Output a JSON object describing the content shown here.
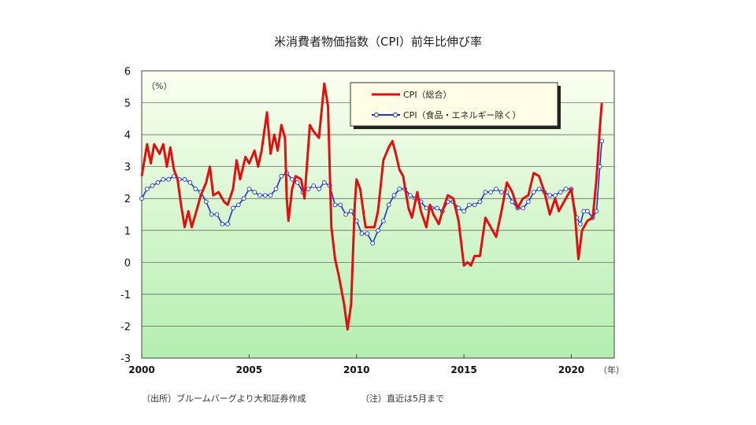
{
  "chart_data": {
    "type": "line",
    "title": "米消費者物価指数（CPI）前年比伸び率",
    "ylabel_unit": "（%）",
    "xlabel_unit": "（年）",
    "x_range": [
      2000,
      2022
    ],
    "ylim": [
      -3,
      6
    ],
    "y_ticks": [
      "6",
      "5",
      "4",
      "3",
      "2",
      "1",
      "0",
      "-1",
      "-2",
      "-3"
    ],
    "x_ticks": [
      "2000",
      "2005",
      "2010",
      "2015",
      "2020"
    ],
    "grid": true,
    "legend_position": "top-right",
    "colors": {
      "cpi": "#e01010",
      "core": "#2233cc",
      "plot_top": "#fbfff0",
      "plot_bottom": "#b4eeb0"
    },
    "series": [
      {
        "name": "CPI（総合）",
        "key": "cpi",
        "marker": "none",
        "points": [
          [
            2000.0,
            2.7
          ],
          [
            2000.25,
            3.7
          ],
          [
            2000.42,
            3.1
          ],
          [
            2000.58,
            3.7
          ],
          [
            2000.83,
            3.4
          ],
          [
            2001.0,
            3.7
          ],
          [
            2001.17,
            3.0
          ],
          [
            2001.33,
            3.6
          ],
          [
            2001.5,
            2.9
          ],
          [
            2001.67,
            2.6
          ],
          [
            2001.83,
            1.8
          ],
          [
            2002.0,
            1.1
          ],
          [
            2002.17,
            1.6
          ],
          [
            2002.33,
            1.1
          ],
          [
            2002.5,
            1.5
          ],
          [
            2002.75,
            2.1
          ],
          [
            2003.0,
            2.5
          ],
          [
            2003.17,
            3.0
          ],
          [
            2003.33,
            2.1
          ],
          [
            2003.58,
            2.2
          ],
          [
            2003.83,
            1.9
          ],
          [
            2004.0,
            1.8
          ],
          [
            2004.25,
            2.3
          ],
          [
            2004.42,
            3.2
          ],
          [
            2004.58,
            2.6
          ],
          [
            2004.83,
            3.3
          ],
          [
            2005.0,
            3.1
          ],
          [
            2005.25,
            3.5
          ],
          [
            2005.42,
            3.0
          ],
          [
            2005.58,
            3.5
          ],
          [
            2005.83,
            4.7
          ],
          [
            2006.0,
            3.4
          ],
          [
            2006.17,
            4.0
          ],
          [
            2006.33,
            3.5
          ],
          [
            2006.5,
            4.3
          ],
          [
            2006.67,
            3.9
          ],
          [
            2006.75,
            2.0
          ],
          [
            2006.83,
            1.3
          ],
          [
            2007.0,
            2.3
          ],
          [
            2007.17,
            2.7
          ],
          [
            2007.42,
            2.6
          ],
          [
            2007.58,
            2.0
          ],
          [
            2007.83,
            4.3
          ],
          [
            2008.0,
            4.1
          ],
          [
            2008.25,
            3.9
          ],
          [
            2008.5,
            5.6
          ],
          [
            2008.67,
            4.9
          ],
          [
            2008.83,
            1.1
          ],
          [
            2009.0,
            0.1
          ],
          [
            2009.17,
            -0.4
          ],
          [
            2009.42,
            -1.3
          ],
          [
            2009.58,
            -2.1
          ],
          [
            2009.75,
            -1.3
          ],
          [
            2009.92,
            1.8
          ],
          [
            2010.0,
            2.6
          ],
          [
            2010.17,
            2.3
          ],
          [
            2010.42,
            1.1
          ],
          [
            2010.67,
            1.1
          ],
          [
            2010.83,
            1.1
          ],
          [
            2011.0,
            1.6
          ],
          [
            2011.25,
            3.2
          ],
          [
            2011.5,
            3.6
          ],
          [
            2011.67,
            3.8
          ],
          [
            2011.83,
            3.4
          ],
          [
            2012.0,
            2.9
          ],
          [
            2012.17,
            2.7
          ],
          [
            2012.42,
            1.7
          ],
          [
            2012.58,
            1.4
          ],
          [
            2012.83,
            2.2
          ],
          [
            2013.0,
            1.6
          ],
          [
            2013.25,
            1.1
          ],
          [
            2013.42,
            1.8
          ],
          [
            2013.58,
            1.5
          ],
          [
            2013.83,
            1.2
          ],
          [
            2014.0,
            1.6
          ],
          [
            2014.25,
            2.1
          ],
          [
            2014.5,
            2.0
          ],
          [
            2014.75,
            1.3
          ],
          [
            2015.0,
            -0.1
          ],
          [
            2015.17,
            0.0
          ],
          [
            2015.33,
            -0.1
          ],
          [
            2015.5,
            0.2
          ],
          [
            2015.75,
            0.2
          ],
          [
            2016.0,
            1.4
          ],
          [
            2016.25,
            1.1
          ],
          [
            2016.5,
            0.8
          ],
          [
            2016.75,
            1.6
          ],
          [
            2017.0,
            2.5
          ],
          [
            2017.25,
            2.2
          ],
          [
            2017.5,
            1.7
          ],
          [
            2017.75,
            2.0
          ],
          [
            2018.0,
            2.1
          ],
          [
            2018.25,
            2.8
          ],
          [
            2018.5,
            2.7
          ],
          [
            2018.75,
            2.2
          ],
          [
            2019.0,
            1.5
          ],
          [
            2019.25,
            2.0
          ],
          [
            2019.42,
            1.6
          ],
          [
            2019.58,
            1.8
          ],
          [
            2019.83,
            2.1
          ],
          [
            2020.0,
            2.3
          ],
          [
            2020.17,
            1.5
          ],
          [
            2020.33,
            0.1
          ],
          [
            2020.5,
            1.0
          ],
          [
            2020.75,
            1.3
          ],
          [
            2021.0,
            1.4
          ],
          [
            2021.17,
            2.6
          ],
          [
            2021.33,
            4.2
          ],
          [
            2021.42,
            5.0
          ]
        ]
      },
      {
        "name": "CPI（食品・エネルギー除く）",
        "key": "core",
        "marker": "circle",
        "points": [
          [
            2000.0,
            2.0
          ],
          [
            2000.25,
            2.3
          ],
          [
            2000.5,
            2.4
          ],
          [
            2000.75,
            2.5
          ],
          [
            2001.0,
            2.6
          ],
          [
            2001.25,
            2.6
          ],
          [
            2001.5,
            2.7
          ],
          [
            2001.75,
            2.6
          ],
          [
            2002.0,
            2.6
          ],
          [
            2002.25,
            2.5
          ],
          [
            2002.5,
            2.3
          ],
          [
            2002.75,
            2.2
          ],
          [
            2003.0,
            1.9
          ],
          [
            2003.25,
            1.5
          ],
          [
            2003.5,
            1.5
          ],
          [
            2003.75,
            1.2
          ],
          [
            2004.0,
            1.2
          ],
          [
            2004.25,
            1.7
          ],
          [
            2004.5,
            1.8
          ],
          [
            2004.75,
            2.0
          ],
          [
            2005.0,
            2.3
          ],
          [
            2005.25,
            2.2
          ],
          [
            2005.5,
            2.1
          ],
          [
            2005.75,
            2.1
          ],
          [
            2006.0,
            2.1
          ],
          [
            2006.25,
            2.3
          ],
          [
            2006.5,
            2.7
          ],
          [
            2006.75,
            2.8
          ],
          [
            2007.0,
            2.6
          ],
          [
            2007.25,
            2.5
          ],
          [
            2007.5,
            2.2
          ],
          [
            2007.75,
            2.3
          ],
          [
            2008.0,
            2.4
          ],
          [
            2008.25,
            2.3
          ],
          [
            2008.5,
            2.5
          ],
          [
            2008.75,
            2.4
          ],
          [
            2009.0,
            1.8
          ],
          [
            2009.25,
            1.8
          ],
          [
            2009.5,
            1.5
          ],
          [
            2009.75,
            1.6
          ],
          [
            2010.0,
            1.3
          ],
          [
            2010.25,
            0.9
          ],
          [
            2010.5,
            0.9
          ],
          [
            2010.75,
            0.6
          ],
          [
            2011.0,
            1.0
          ],
          [
            2011.25,
            1.3
          ],
          [
            2011.5,
            1.8
          ],
          [
            2011.75,
            2.1
          ],
          [
            2012.0,
            2.3
          ],
          [
            2012.25,
            2.3
          ],
          [
            2012.5,
            2.1
          ],
          [
            2012.75,
            2.0
          ],
          [
            2013.0,
            1.9
          ],
          [
            2013.25,
            1.7
          ],
          [
            2013.5,
            1.7
          ],
          [
            2013.75,
            1.7
          ],
          [
            2014.0,
            1.6
          ],
          [
            2014.25,
            1.9
          ],
          [
            2014.5,
            1.9
          ],
          [
            2014.75,
            1.7
          ],
          [
            2015.0,
            1.6
          ],
          [
            2015.25,
            1.8
          ],
          [
            2015.5,
            1.8
          ],
          [
            2015.75,
            1.9
          ],
          [
            2016.0,
            2.2
          ],
          [
            2016.25,
            2.2
          ],
          [
            2016.5,
            2.3
          ],
          [
            2016.75,
            2.2
          ],
          [
            2017.0,
            2.2
          ],
          [
            2017.25,
            1.9
          ],
          [
            2017.5,
            1.7
          ],
          [
            2017.75,
            1.7
          ],
          [
            2018.0,
            1.9
          ],
          [
            2018.25,
            2.2
          ],
          [
            2018.5,
            2.3
          ],
          [
            2018.75,
            2.2
          ],
          [
            2019.0,
            2.1
          ],
          [
            2019.25,
            2.1
          ],
          [
            2019.5,
            2.2
          ],
          [
            2019.75,
            2.3
          ],
          [
            2020.0,
            2.3
          ],
          [
            2020.25,
            1.4
          ],
          [
            2020.42,
            1.2
          ],
          [
            2020.58,
            1.6
          ],
          [
            2020.75,
            1.6
          ],
          [
            2021.0,
            1.4
          ],
          [
            2021.17,
            1.6
          ],
          [
            2021.33,
            3.0
          ],
          [
            2021.42,
            3.8
          ]
        ]
      }
    ]
  },
  "footer": {
    "source": "（出所）ブルームバーグより大和証券作成",
    "note": "（注）直近は5月まで"
  }
}
